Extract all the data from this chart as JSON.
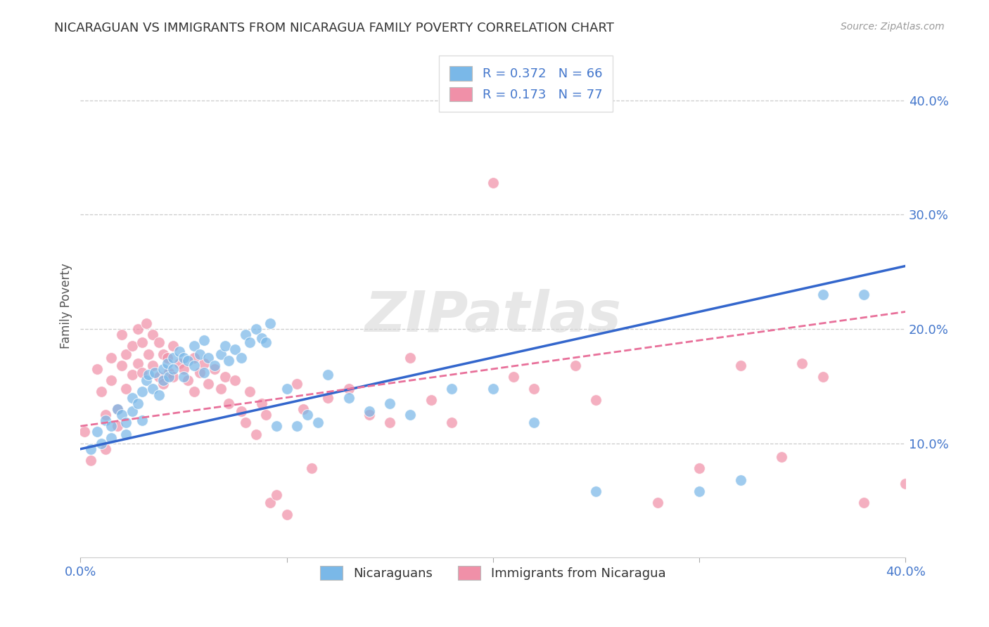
{
  "title": "NICARAGUAN VS IMMIGRANTS FROM NICARAGUA FAMILY POVERTY CORRELATION CHART",
  "source": "Source: ZipAtlas.com",
  "ylabel": "Family Poverty",
  "series1_label": "Nicaraguans",
  "series2_label": "Immigrants from Nicaragua",
  "series1_color": "#7ab8e8",
  "series2_color": "#f090a8",
  "series1_line_color": "#3366cc",
  "series2_line_color": "#e8709a",
  "title_color": "#333333",
  "axis_color": "#4477cc",
  "xlim": [
    0.0,
    0.4
  ],
  "ylim": [
    0.0,
    0.44
  ],
  "ytick_values": [
    0.1,
    0.2,
    0.3,
    0.4
  ],
  "R1": 0.372,
  "N1": 66,
  "R2": 0.173,
  "N2": 77,
  "scatter1_x": [
    0.005,
    0.008,
    0.01,
    0.012,
    0.015,
    0.015,
    0.018,
    0.02,
    0.022,
    0.022,
    0.025,
    0.025,
    0.028,
    0.03,
    0.03,
    0.032,
    0.033,
    0.035,
    0.036,
    0.038,
    0.04,
    0.04,
    0.042,
    0.043,
    0.045,
    0.045,
    0.048,
    0.05,
    0.05,
    0.052,
    0.055,
    0.055,
    0.058,
    0.06,
    0.06,
    0.062,
    0.065,
    0.068,
    0.07,
    0.072,
    0.075,
    0.078,
    0.08,
    0.082,
    0.085,
    0.088,
    0.09,
    0.092,
    0.095,
    0.1,
    0.105,
    0.11,
    0.115,
    0.12,
    0.13,
    0.14,
    0.15,
    0.16,
    0.18,
    0.2,
    0.22,
    0.25,
    0.3,
    0.32,
    0.36,
    0.38
  ],
  "scatter1_y": [
    0.095,
    0.11,
    0.1,
    0.12,
    0.115,
    0.105,
    0.13,
    0.125,
    0.118,
    0.108,
    0.14,
    0.128,
    0.135,
    0.145,
    0.12,
    0.155,
    0.16,
    0.148,
    0.162,
    0.142,
    0.165,
    0.155,
    0.17,
    0.158,
    0.175,
    0.165,
    0.18,
    0.175,
    0.158,
    0.172,
    0.185,
    0.168,
    0.178,
    0.19,
    0.162,
    0.175,
    0.168,
    0.178,
    0.185,
    0.172,
    0.182,
    0.175,
    0.195,
    0.188,
    0.2,
    0.192,
    0.188,
    0.205,
    0.115,
    0.148,
    0.115,
    0.125,
    0.118,
    0.16,
    0.14,
    0.128,
    0.135,
    0.125,
    0.148,
    0.148,
    0.118,
    0.058,
    0.058,
    0.068,
    0.23,
    0.23
  ],
  "scatter2_x": [
    0.002,
    0.005,
    0.008,
    0.01,
    0.012,
    0.012,
    0.015,
    0.015,
    0.018,
    0.018,
    0.02,
    0.02,
    0.022,
    0.022,
    0.025,
    0.025,
    0.028,
    0.028,
    0.03,
    0.03,
    0.032,
    0.033,
    0.035,
    0.035,
    0.038,
    0.038,
    0.04,
    0.04,
    0.042,
    0.043,
    0.045,
    0.045,
    0.048,
    0.05,
    0.052,
    0.055,
    0.055,
    0.058,
    0.06,
    0.062,
    0.065,
    0.068,
    0.07,
    0.072,
    0.075,
    0.078,
    0.08,
    0.082,
    0.085,
    0.088,
    0.09,
    0.092,
    0.095,
    0.1,
    0.105,
    0.108,
    0.112,
    0.12,
    0.13,
    0.14,
    0.15,
    0.16,
    0.17,
    0.18,
    0.2,
    0.21,
    0.22,
    0.24,
    0.25,
    0.28,
    0.3,
    0.32,
    0.34,
    0.35,
    0.36,
    0.38,
    0.4
  ],
  "scatter2_y": [
    0.11,
    0.085,
    0.165,
    0.145,
    0.125,
    0.095,
    0.175,
    0.155,
    0.13,
    0.115,
    0.195,
    0.168,
    0.178,
    0.148,
    0.185,
    0.16,
    0.2,
    0.17,
    0.188,
    0.162,
    0.205,
    0.178,
    0.195,
    0.168,
    0.188,
    0.158,
    0.178,
    0.152,
    0.175,
    0.162,
    0.185,
    0.158,
    0.17,
    0.165,
    0.155,
    0.175,
    0.145,
    0.162,
    0.17,
    0.152,
    0.165,
    0.148,
    0.158,
    0.135,
    0.155,
    0.128,
    0.118,
    0.145,
    0.108,
    0.135,
    0.125,
    0.048,
    0.055,
    0.038,
    0.152,
    0.13,
    0.078,
    0.14,
    0.148,
    0.125,
    0.118,
    0.175,
    0.138,
    0.118,
    0.328,
    0.158,
    0.148,
    0.168,
    0.138,
    0.048,
    0.078,
    0.168,
    0.088,
    0.17,
    0.158,
    0.048,
    0.065
  ],
  "line1_x0": 0.0,
  "line1_y0": 0.095,
  "line1_x1": 0.4,
  "line1_y1": 0.255,
  "line2_x0": 0.0,
  "line2_y0": 0.115,
  "line2_x1": 0.4,
  "line2_y1": 0.215
}
